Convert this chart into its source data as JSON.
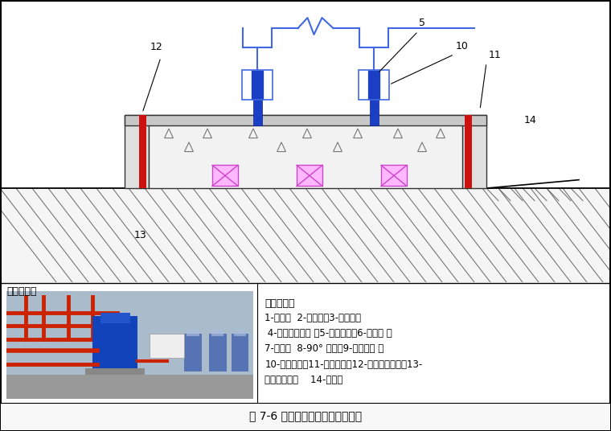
{
  "title": "图 7-6 立式水泵与管路连接示意图",
  "bg_color": "#ffffff",
  "legend_title": "符号说明：",
  "legend_lines": [
    "1-闸阀；  2-除污器；3-软接头；",
    " 4-压力表连旋塞 ；5-立式水泵；6-止回阀 ；",
    "7-支架；  8-90° 弯头；9-弹性吊架 ；",
    "10-浮动底座；11-隔离夹板；12-外部等级夹板；13-",
    "隔振橡胶垫；    14-地面；"
  ],
  "shishi_label": "实施案例：",
  "blue_pipe": "#1a3fc4",
  "blue_line": "#4169e1",
  "red_pad": "#cc1111",
  "pink_fill": "#ffb8ff",
  "pink_edge": "#cc44cc",
  "ground_hatch": "#666666",
  "pad_fill": "#f2f2f2",
  "pad_edge": "#333333",
  "dark_line": "#444444",
  "photo_colors": {
    "bg": "#8899aa",
    "red_pipe": "#cc2200",
    "blue_pump": "#1144bb",
    "floor": "#aaaaaa",
    "wall": "#dddddd",
    "box_white": "#eeeeee"
  }
}
